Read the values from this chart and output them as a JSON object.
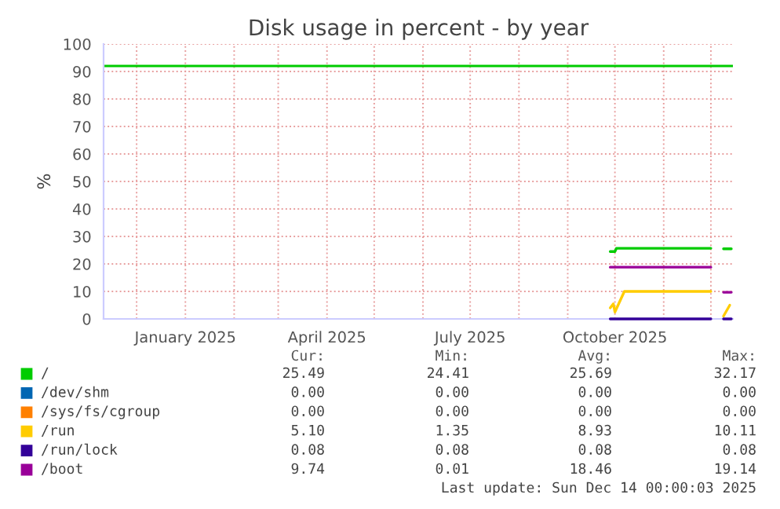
{
  "chart_data": {
    "type": "line",
    "title": "Disk usage in percent - by year",
    "ylabel": "%",
    "xlim": [
      "2024-11-10",
      "2025-12-15"
    ],
    "ylim": [
      0,
      100
    ],
    "xticks": [
      {
        "value": "2024-12-01",
        "label": null
      },
      {
        "value": "2025-01-01",
        "label": "January 2025"
      },
      {
        "value": "2025-02-01",
        "label": null
      },
      {
        "value": "2025-03-01",
        "label": null
      },
      {
        "value": "2025-04-01",
        "label": "April 2025"
      },
      {
        "value": "2025-05-01",
        "label": null
      },
      {
        "value": "2025-06-01",
        "label": null
      },
      {
        "value": "2025-07-01",
        "label": "July 2025"
      },
      {
        "value": "2025-08-01",
        "label": null
      },
      {
        "value": "2025-09-01",
        "label": null
      },
      {
        "value": "2025-10-01",
        "label": "October 2025"
      },
      {
        "value": "2025-11-01",
        "label": null
      },
      {
        "value": "2025-12-01",
        "label": null
      }
    ],
    "yticks": [
      0,
      10,
      20,
      30,
      40,
      50,
      60,
      70,
      80,
      90,
      100
    ],
    "grid": true,
    "legend": "bottom",
    "ref_lines": [
      {
        "axis": "y",
        "value": 92,
        "color": "#00cc00"
      }
    ],
    "series": [
      {
        "name": "/",
        "color": "#00cc00",
        "x": [
          "2025-09-28",
          "2025-10-01",
          "2025-10-02",
          "2025-12-01",
          "2025-12-02",
          "2025-12-09",
          "2025-12-14"
        ],
        "values": [
          24.5,
          24.5,
          25.7,
          25.7,
          null,
          25.5,
          25.5
        ]
      },
      {
        "name": "/dev/shm",
        "color": "#0066b3"
      },
      {
        "name": "/sys/fs/cgroup",
        "color": "#ff8000"
      },
      {
        "name": "/run",
        "color": "#ffcc00",
        "x": [
          "2025-09-28",
          "2025-09-30",
          "2025-10-01",
          "2025-10-07",
          "2025-12-01",
          "2025-12-02",
          "2025-12-09",
          "2025-12-13"
        ],
        "values": [
          4,
          5.5,
          2.5,
          10,
          10,
          null,
          1,
          5
        ]
      },
      {
        "name": "/run/lock",
        "color": "#330099",
        "x": [
          "2025-09-28",
          "2025-12-01",
          "2025-12-02",
          "2025-12-09",
          "2025-12-14"
        ],
        "values": [
          0,
          0,
          null,
          0,
          0
        ]
      },
      {
        "name": "/boot",
        "color": "#990099",
        "x": [
          "2025-09-28",
          "2025-12-01",
          "2025-12-02",
          "2025-12-09",
          "2025-12-14"
        ],
        "values": [
          18.8,
          18.8,
          null,
          9.7,
          9.7
        ]
      }
    ],
    "annotations": [
      "Cur:",
      "Min:",
      "Avg:",
      "Max:",
      "25.49",
      "24.41",
      "25.69",
      "32.17",
      "0.00",
      "0.00",
      "0.00",
      "0.00",
      "0.00",
      "0.00",
      "0.00",
      "0.00",
      "5.10",
      "1.35",
      "8.93",
      "10.11",
      "0.08",
      "0.08",
      "0.08",
      "0.08",
      "9.74",
      "0.01",
      "18.46",
      "19.14",
      "Last update: Sun Dec 14 00:00:03 2025"
    ]
  }
}
